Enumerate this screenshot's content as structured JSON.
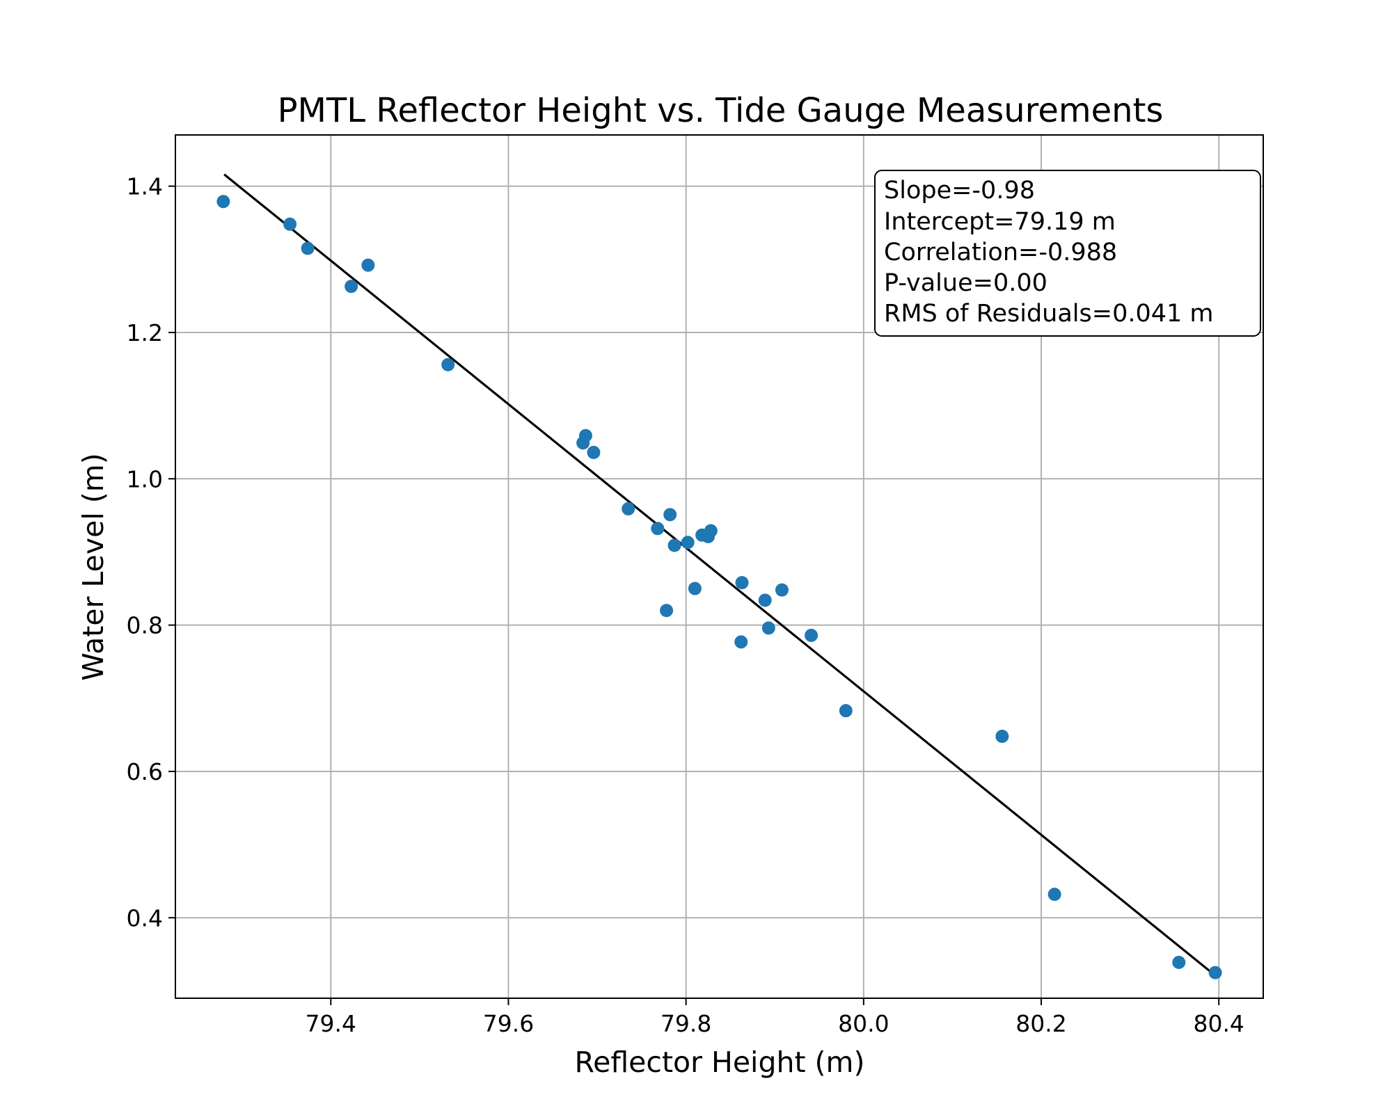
{
  "chart_data": {
    "type": "scatter",
    "title": "PMTL Reflector Height vs. Tide Gauge Measurements",
    "xlabel": "Reflector Height (m)",
    "ylabel": "Water Level (m)",
    "xlim": [
      79.225,
      80.45
    ],
    "ylim": [
      0.29,
      1.47
    ],
    "grid": true,
    "x_ticks": [
      {
        "value": 79.4,
        "label": "79.4"
      },
      {
        "value": 79.6,
        "label": "79.6"
      },
      {
        "value": 79.8,
        "label": "79.8"
      },
      {
        "value": 80.0,
        "label": "80.0"
      },
      {
        "value": 80.2,
        "label": "80.2"
      },
      {
        "value": 80.4,
        "label": "80.4"
      }
    ],
    "y_ticks": [
      {
        "value": 0.4,
        "label": "0.4"
      },
      {
        "value": 0.6,
        "label": "0.6"
      },
      {
        "value": 0.8,
        "label": "0.8"
      },
      {
        "value": 1.0,
        "label": "1.0"
      },
      {
        "value": 1.2,
        "label": "1.2"
      },
      {
        "value": 1.4,
        "label": "1.4"
      }
    ],
    "series": [
      {
        "color": "#1f77b4",
        "points": [
          {
            "x": 79.279,
            "y": 1.379
          },
          {
            "x": 79.354,
            "y": 1.348
          },
          {
            "x": 79.374,
            "y": 1.315
          },
          {
            "x": 79.423,
            "y": 1.263
          },
          {
            "x": 79.442,
            "y": 1.292
          },
          {
            "x": 79.532,
            "y": 1.156
          },
          {
            "x": 79.684,
            "y": 1.049
          },
          {
            "x": 79.687,
            "y": 1.059
          },
          {
            "x": 79.696,
            "y": 1.036
          },
          {
            "x": 79.735,
            "y": 0.959
          },
          {
            "x": 79.768,
            "y": 0.932
          },
          {
            "x": 79.778,
            "y": 0.82
          },
          {
            "x": 79.782,
            "y": 0.951
          },
          {
            "x": 79.787,
            "y": 0.909
          },
          {
            "x": 79.802,
            "y": 0.913
          },
          {
            "x": 79.81,
            "y": 0.85
          },
          {
            "x": 79.818,
            "y": 0.923
          },
          {
            "x": 79.825,
            "y": 0.921
          },
          {
            "x": 79.828,
            "y": 0.929
          },
          {
            "x": 79.862,
            "y": 0.777
          },
          {
            "x": 79.863,
            "y": 0.858
          },
          {
            "x": 79.889,
            "y": 0.834
          },
          {
            "x": 79.893,
            "y": 0.796
          },
          {
            "x": 79.908,
            "y": 0.848
          },
          {
            "x": 79.941,
            "y": 0.786
          },
          {
            "x": 79.98,
            "y": 0.683
          },
          {
            "x": 80.156,
            "y": 0.648
          },
          {
            "x": 80.215,
            "y": 0.432
          },
          {
            "x": 80.355,
            "y": 0.339
          },
          {
            "x": 80.396,
            "y": 0.325
          }
        ]
      }
    ],
    "fit_line": {
      "color": "#000000",
      "x": [
        79.28,
        80.395
      ],
      "y": [
        1.416,
        0.322
      ]
    },
    "stats_box": {
      "placement": "top-right",
      "lines": [
        "Slope=-0.98",
        "Intercept=79.19 m",
        "Correlation=-0.988",
        "P-value=0.00",
        "RMS of Residuals=0.041 m"
      ]
    }
  }
}
